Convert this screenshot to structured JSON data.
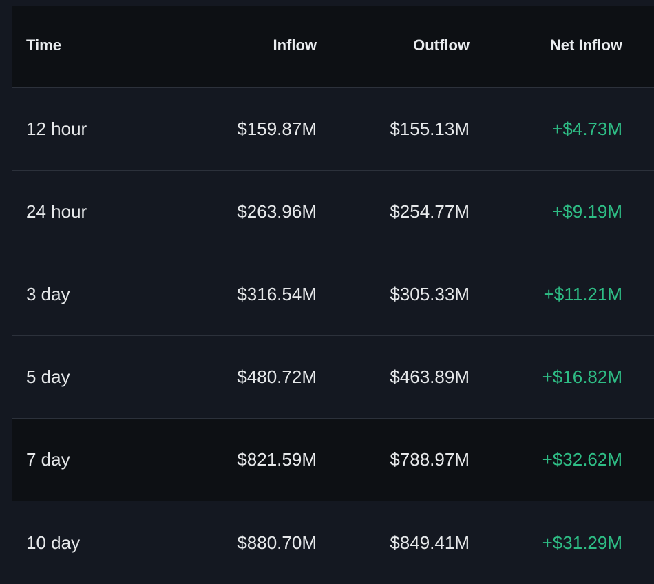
{
  "table": {
    "headers": {
      "time": "Time",
      "inflow": "Inflow",
      "outflow": "Outflow",
      "net_inflow": "Net Inflow"
    },
    "rows": [
      {
        "time": "12 hour",
        "inflow": "$159.87M",
        "outflow": "$155.13M",
        "net_inflow": "+$4.73M"
      },
      {
        "time": "24 hour",
        "inflow": "$263.96M",
        "outflow": "$254.77M",
        "net_inflow": "+$9.19M"
      },
      {
        "time": "3 day",
        "inflow": "$316.54M",
        "outflow": "$305.33M",
        "net_inflow": "+$11.21M"
      },
      {
        "time": "5 day",
        "inflow": "$480.72M",
        "outflow": "$463.89M",
        "net_inflow": "+$16.82M"
      },
      {
        "time": "7 day",
        "inflow": "$821.59M",
        "outflow": "$788.97M",
        "net_inflow": "+$32.62M"
      },
      {
        "time": "10 day",
        "inflow": "$880.70M",
        "outflow": "$849.41M",
        "net_inflow": "+$31.29M"
      }
    ]
  },
  "colors": {
    "background": "#141821",
    "header_background": "#0d1014",
    "text": "#e6e8ea",
    "positive": "#2ebd85",
    "divider": "#2c313b"
  }
}
